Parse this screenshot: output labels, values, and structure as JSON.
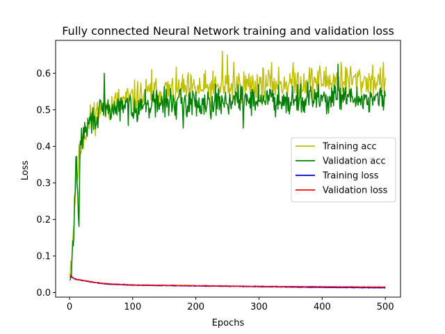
{
  "chart_data": {
    "type": "line",
    "title": "Fully connected Neural Network training and validation loss",
    "xlabel": "Epochs",
    "ylabel": "Loss",
    "xlim": [
      -22,
      524
    ],
    "ylim": [
      -0.0125,
      0.69
    ],
    "xticks": [
      0,
      100,
      200,
      300,
      400,
      500
    ],
    "yticks": [
      0.0,
      0.1,
      0.2,
      0.3,
      0.4,
      0.5,
      0.6
    ],
    "ytick_labels": [
      "0.0",
      "0.1",
      "0.2",
      "0.3",
      "0.4",
      "0.5",
      "0.6"
    ],
    "grid": false,
    "legend_position": "center-right",
    "epochs": [
      1,
      500
    ],
    "series": [
      {
        "name": "Training acc",
        "color": "#bfbf00",
        "anchors": [
          [
            1,
            0.07
          ],
          [
            3,
            0.09
          ],
          [
            5,
            0.14
          ],
          [
            7,
            0.2
          ],
          [
            10,
            0.3
          ],
          [
            13,
            0.33
          ],
          [
            16,
            0.38
          ],
          [
            20,
            0.42
          ],
          [
            25,
            0.44
          ],
          [
            30,
            0.46
          ],
          [
            40,
            0.49
          ],
          [
            50,
            0.5
          ],
          [
            60,
            0.51
          ],
          [
            80,
            0.52
          ],
          [
            100,
            0.53
          ],
          [
            120,
            0.54
          ],
          [
            150,
            0.55
          ],
          [
            200,
            0.555
          ],
          [
            240,
            0.56
          ],
          [
            300,
            0.57
          ],
          [
            350,
            0.575
          ],
          [
            400,
            0.58
          ],
          [
            450,
            0.58
          ],
          [
            500,
            0.58
          ]
        ],
        "noise": 0.035,
        "seed": 11,
        "peaks": [
          [
            242,
            0.66
          ],
          [
            250,
            0.65
          ],
          [
            130,
            0.61
          ],
          [
            260,
            0.63
          ],
          [
            430,
            0.63
          ]
        ]
      },
      {
        "name": "Validation acc",
        "color": "#008000",
        "anchors": [
          [
            1,
            0.02
          ],
          [
            3,
            0.05
          ],
          [
            5,
            0.12
          ],
          [
            7,
            0.18
          ],
          [
            9,
            0.3
          ],
          [
            11,
            0.36
          ],
          [
            13,
            0.26
          ],
          [
            15,
            0.22
          ],
          [
            17,
            0.38
          ],
          [
            20,
            0.43
          ],
          [
            25,
            0.44
          ],
          [
            30,
            0.46
          ],
          [
            40,
            0.48
          ],
          [
            50,
            0.49
          ],
          [
            60,
            0.5
          ],
          [
            80,
            0.505
          ],
          [
            100,
            0.51
          ],
          [
            150,
            0.52
          ],
          [
            200,
            0.52
          ],
          [
            300,
            0.53
          ],
          [
            400,
            0.53
          ],
          [
            500,
            0.53
          ]
        ],
        "noise": 0.03,
        "seed": 29,
        "peaks": [
          [
            10,
            0.37
          ],
          [
            14,
            0.21
          ],
          [
            55,
            0.6
          ],
          [
            425,
            0.625
          ],
          [
            180,
            0.45
          ],
          [
            275,
            0.45
          ]
        ]
      },
      {
        "name": "Training loss",
        "color": "#0000cc",
        "anchors": [
          [
            1,
            0.045
          ],
          [
            5,
            0.04
          ],
          [
            10,
            0.036
          ],
          [
            20,
            0.033
          ],
          [
            40,
            0.027
          ],
          [
            60,
            0.023
          ],
          [
            100,
            0.02
          ],
          [
            150,
            0.019
          ],
          [
            200,
            0.018
          ],
          [
            300,
            0.016
          ],
          [
            400,
            0.014
          ],
          [
            500,
            0.013
          ]
        ],
        "noise": 0.0005,
        "seed": 7,
        "peaks": []
      },
      {
        "name": "Validation loss",
        "color": "#ff0000",
        "anchors": [
          [
            1,
            0.05
          ],
          [
            5,
            0.041
          ],
          [
            10,
            0.037
          ],
          [
            20,
            0.034
          ],
          [
            40,
            0.028
          ],
          [
            60,
            0.024
          ],
          [
            100,
            0.021
          ],
          [
            150,
            0.02
          ],
          [
            200,
            0.019
          ],
          [
            300,
            0.017
          ],
          [
            400,
            0.016
          ],
          [
            500,
            0.015
          ]
        ],
        "noise": 0.0006,
        "seed": 3,
        "peaks": []
      }
    ]
  }
}
